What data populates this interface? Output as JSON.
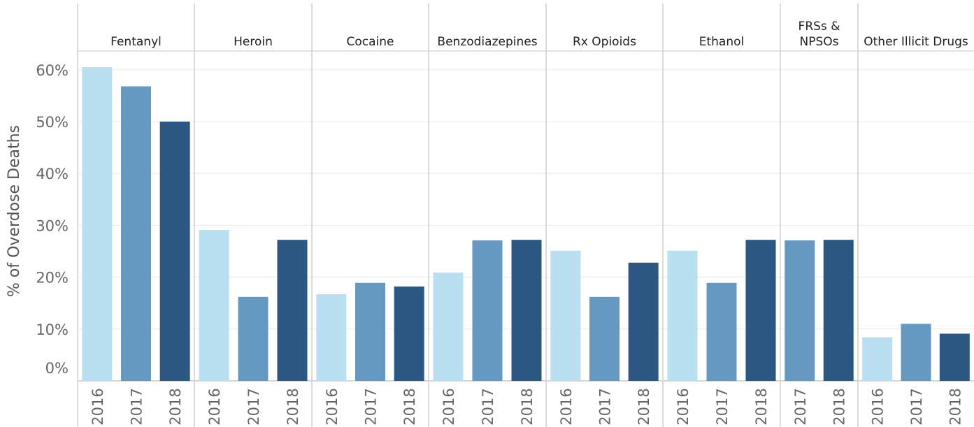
{
  "chart_data": {
    "type": "bar",
    "ylabel": "% of Overdose Deaths",
    "xlabel": "",
    "ylim": [
      0,
      63
    ],
    "yticks": [
      0,
      10,
      20,
      30,
      40,
      50,
      60
    ],
    "ytick_labels": [
      "0%",
      "10%",
      "20%",
      "30%",
      "40%",
      "50%",
      "60%"
    ],
    "grid": true,
    "legend": "none",
    "year_colors": {
      "2016": "#b9dff1",
      "2017": "#6699c2",
      "2018": "#2b5782"
    },
    "panels": [
      {
        "label": "Fentanyl",
        "bars": [
          {
            "year": "2016",
            "value": 60.5
          },
          {
            "year": "2017",
            "value": 56.8
          },
          {
            "year": "2018",
            "value": 50.0
          }
        ]
      },
      {
        "label": "Heroin",
        "bars": [
          {
            "year": "2016",
            "value": 29.1
          },
          {
            "year": "2017",
            "value": 16.2
          },
          {
            "year": "2018",
            "value": 27.2
          }
        ]
      },
      {
        "label": "Cocaine",
        "bars": [
          {
            "year": "2016",
            "value": 16.7
          },
          {
            "year": "2017",
            "value": 18.9
          },
          {
            "year": "2018",
            "value": 18.2
          }
        ]
      },
      {
        "label": "Benzodiazepines",
        "bars": [
          {
            "year": "2016",
            "value": 20.9
          },
          {
            "year": "2017",
            "value": 27.1
          },
          {
            "year": "2018",
            "value": 27.2
          }
        ]
      },
      {
        "label": "Rx Opioids",
        "bars": [
          {
            "year": "2016",
            "value": 25.1
          },
          {
            "year": "2017",
            "value": 16.2
          },
          {
            "year": "2018",
            "value": 22.8
          }
        ]
      },
      {
        "label": "Ethanol",
        "bars": [
          {
            "year": "2016",
            "value": 25.1
          },
          {
            "year": "2017",
            "value": 18.9
          },
          {
            "year": "2018",
            "value": 27.2
          }
        ]
      },
      {
        "label": "FRSs &\nNPSOs",
        "bars": [
          {
            "year": "2017",
            "value": 27.1
          },
          {
            "year": "2018",
            "value": 27.2
          }
        ]
      },
      {
        "label": "Other Illicit Drugs",
        "bars": [
          {
            "year": "2016",
            "value": 8.4
          },
          {
            "year": "2017",
            "value": 11.0
          },
          {
            "year": "2018",
            "value": 9.1
          }
        ]
      }
    ]
  }
}
